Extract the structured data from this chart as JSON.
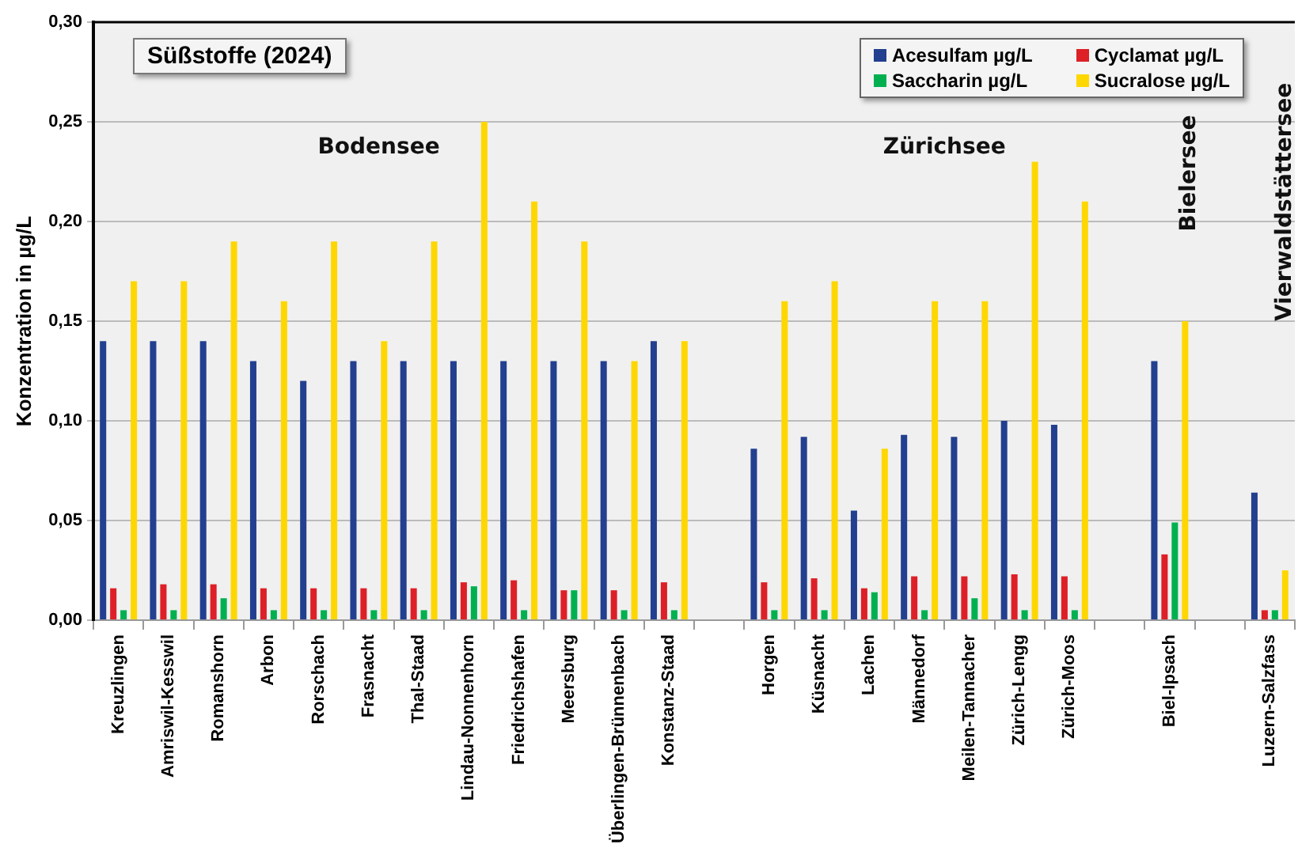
{
  "chart_data": {
    "type": "bar",
    "title": "Süßstoffe (2024)",
    "ylabel": "Konzentration in µg/L",
    "categories": [
      "Kreuzlingen",
      "Amriswil-Kesswil",
      "Romanshorn",
      "Arbon",
      "Rorschach",
      "Frasnacht",
      "Thal-Staad",
      "Lindau-Nonnenhorn",
      "Friedrichshafen",
      "Meersburg",
      "Überlingen-Brünnenbach",
      "Konstanz-Staad",
      null,
      "Horgen",
      "Küsnacht",
      "Lachen",
      "Männedorf",
      "Meilen-Tannacher",
      "Zürich-Lengg",
      "Zürich-Moos",
      null,
      "Biel-Ipsach",
      null,
      "Luzern-Salzfass"
    ],
    "series": [
      {
        "name": "Acesulfam µg/L",
        "color": "#233f8f",
        "values": [
          0.14,
          0.14,
          0.14,
          0.13,
          0.12,
          0.13,
          0.13,
          0.13,
          0.13,
          0.13,
          0.13,
          0.14,
          null,
          0.086,
          0.092,
          0.055,
          0.093,
          0.092,
          0.1,
          0.098,
          null,
          0.13,
          null,
          0.064
        ]
      },
      {
        "name": "Cyclamat µg/L",
        "color": "#dd2027",
        "values": [
          0.016,
          0.018,
          0.018,
          0.016,
          0.016,
          0.016,
          0.016,
          0.019,
          0.02,
          0.015,
          0.015,
          0.019,
          null,
          0.019,
          0.021,
          0.016,
          0.022,
          0.022,
          0.023,
          0.022,
          null,
          0.033,
          null,
          0.005
        ]
      },
      {
        "name": "Saccharin µg/L",
        "color": "#00b050",
        "values": [
          0.005,
          0.005,
          0.011,
          0.005,
          0.005,
          0.005,
          0.005,
          0.017,
          0.005,
          0.015,
          0.005,
          0.005,
          null,
          0.005,
          0.005,
          0.014,
          0.005,
          0.011,
          0.005,
          0.005,
          null,
          0.049,
          null,
          0.005
        ]
      },
      {
        "name": "Sucralose µg/L",
        "color": "#ffd700",
        "values": [
          0.17,
          0.17,
          0.19,
          0.16,
          0.19,
          0.14,
          0.19,
          0.25,
          0.21,
          0.19,
          0.13,
          0.14,
          null,
          0.16,
          0.17,
          0.086,
          0.16,
          0.16,
          0.23,
          0.21,
          null,
          0.15,
          null,
          0.025
        ]
      }
    ],
    "ylim": [
      0,
      0.3
    ],
    "yticks": [
      {
        "value": 0,
        "label": "0,00"
      },
      {
        "value": 0.05,
        "label": "0,05"
      },
      {
        "value": 0.1,
        "label": "0,10"
      },
      {
        "value": 0.15,
        "label": "0,15"
      },
      {
        "value": 0.2,
        "label": "0,20"
      },
      {
        "value": 0.25,
        "label": "0,25"
      },
      {
        "value": 0.3,
        "label": "0,30"
      }
    ],
    "grid": "y",
    "legend": "top right",
    "annotations": [
      "Bodensee",
      "Zürichsee",
      "Bielersee",
      "Vierwaldstättersee"
    ]
  }
}
